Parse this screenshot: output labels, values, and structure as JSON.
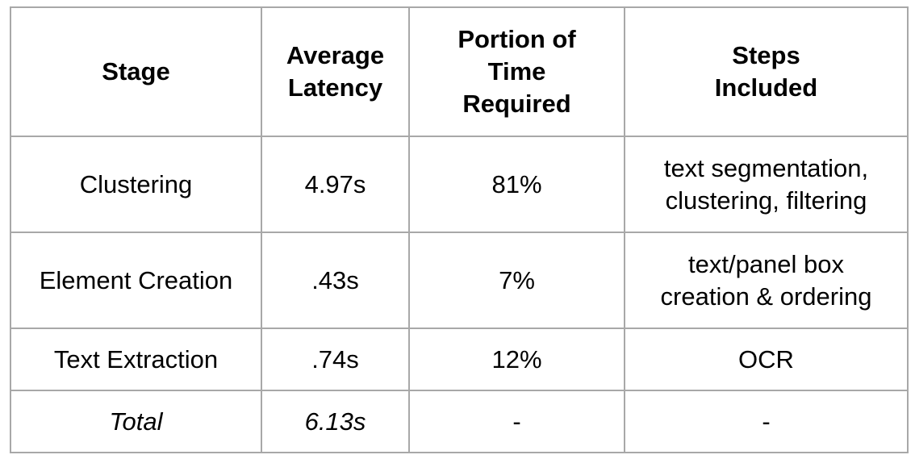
{
  "table": {
    "headers": {
      "stage": [
        "Stage"
      ],
      "latency": [
        "Average",
        "Latency"
      ],
      "portion": [
        "Portion of",
        "Time",
        "Required"
      ],
      "steps": [
        "Steps",
        "Included"
      ]
    },
    "rows": [
      {
        "stage": "Clustering",
        "latency": "4.97s",
        "portion": "81%",
        "steps": [
          "text segmentation,",
          "clustering, filtering"
        ]
      },
      {
        "stage": "Element Creation",
        "latency": ".43s",
        "portion": "7%",
        "steps": [
          "text/panel box",
          "creation & ordering"
        ]
      },
      {
        "stage": "Text Extraction",
        "latency": ".74s",
        "portion": "12%",
        "steps": [
          "OCR"
        ]
      }
    ],
    "total": {
      "stage": "Total",
      "latency": "6.13s",
      "portion": "-",
      "steps": "-"
    }
  }
}
